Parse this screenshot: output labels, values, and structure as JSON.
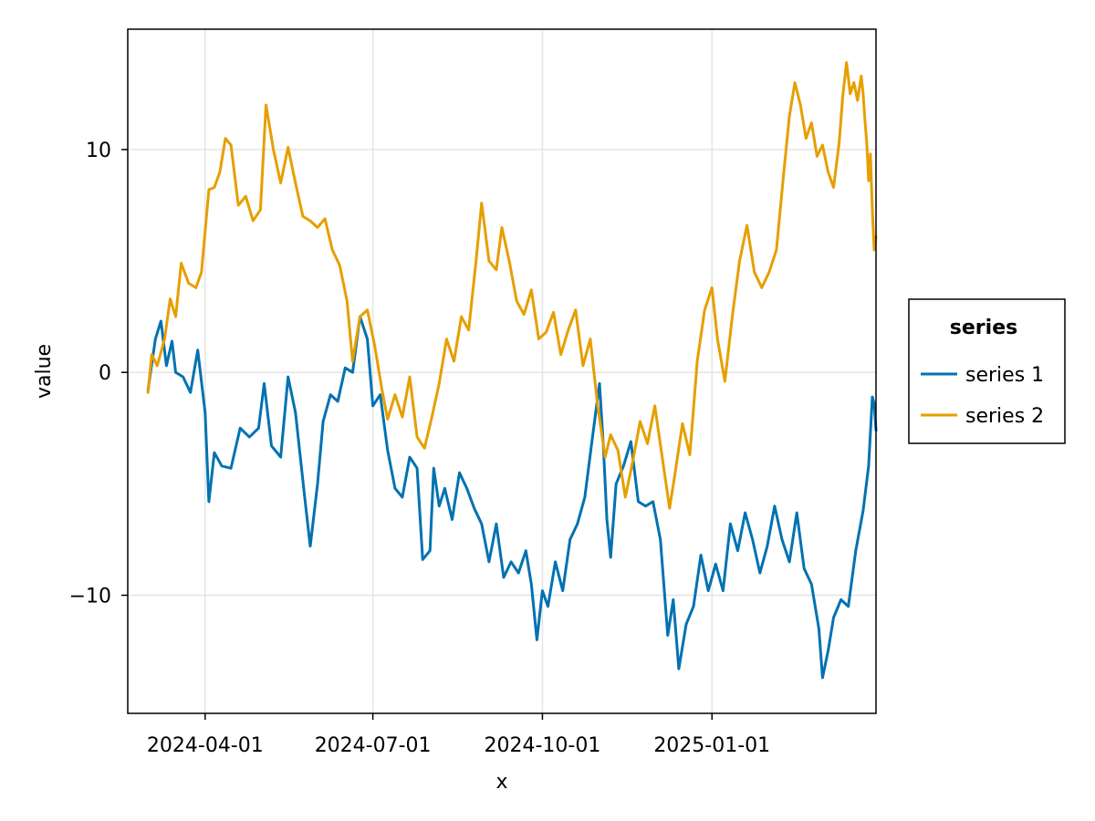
{
  "chart_data": {
    "type": "line",
    "xlabel": "x",
    "ylabel": "value",
    "x_type": "date",
    "x_range": [
      "2024-02-19",
      "2025-03-31"
    ],
    "x_ticks": [
      "2024-04-01",
      "2024-07-01",
      "2024-10-01",
      "2025-01-01"
    ],
    "y_range": [
      -15.3,
      15.4
    ],
    "y_ticks": [
      -10,
      0,
      10
    ],
    "y_tick_labels": [
      "−10",
      "0",
      "10"
    ],
    "grid": true,
    "legend": {
      "title": "series",
      "placement": "right"
    },
    "series": [
      {
        "name": "series 1",
        "color": "#0072b2",
        "points": [
          [
            "2024-03-01",
            -0.8
          ],
          [
            "2024-03-05",
            1.5
          ],
          [
            "2024-03-08",
            2.3
          ],
          [
            "2024-03-11",
            0.3
          ],
          [
            "2024-03-14",
            1.4
          ],
          [
            "2024-03-16",
            0.0
          ],
          [
            "2024-03-20",
            -0.2
          ],
          [
            "2024-03-24",
            -0.9
          ],
          [
            "2024-03-28",
            1.0
          ],
          [
            "2024-04-01",
            -1.8
          ],
          [
            "2024-04-03",
            -5.8
          ],
          [
            "2024-04-06",
            -3.6
          ],
          [
            "2024-04-10",
            -4.2
          ],
          [
            "2024-04-15",
            -4.3
          ],
          [
            "2024-04-20",
            -2.5
          ],
          [
            "2024-04-25",
            -2.9
          ],
          [
            "2024-04-30",
            -2.5
          ],
          [
            "2024-05-03",
            -0.5
          ],
          [
            "2024-05-07",
            -3.3
          ],
          [
            "2024-05-12",
            -3.8
          ],
          [
            "2024-05-16",
            -0.2
          ],
          [
            "2024-05-20",
            -1.8
          ],
          [
            "2024-05-25",
            -5.6
          ],
          [
            "2024-05-28",
            -7.8
          ],
          [
            "2024-06-01",
            -5.0
          ],
          [
            "2024-06-04",
            -2.2
          ],
          [
            "2024-06-08",
            -1.0
          ],
          [
            "2024-06-12",
            -1.3
          ],
          [
            "2024-06-16",
            0.2
          ],
          [
            "2024-06-20",
            0.0
          ],
          [
            "2024-06-24",
            2.5
          ],
          [
            "2024-06-28",
            1.5
          ],
          [
            "2024-07-01",
            -1.5
          ],
          [
            "2024-07-05",
            -1.0
          ],
          [
            "2024-07-09",
            -3.5
          ],
          [
            "2024-07-13",
            -5.2
          ],
          [
            "2024-07-17",
            -5.6
          ],
          [
            "2024-07-21",
            -3.8
          ],
          [
            "2024-07-25",
            -4.3
          ],
          [
            "2024-07-28",
            -8.4
          ],
          [
            "2024-08-01",
            -8.0
          ],
          [
            "2024-08-03",
            -4.3
          ],
          [
            "2024-08-06",
            -6.0
          ],
          [
            "2024-08-09",
            -5.2
          ],
          [
            "2024-08-13",
            -6.6
          ],
          [
            "2024-08-17",
            -4.5
          ],
          [
            "2024-08-21",
            -5.2
          ],
          [
            "2024-08-25",
            -6.1
          ],
          [
            "2024-08-29",
            -6.8
          ],
          [
            "2024-09-02",
            -8.5
          ],
          [
            "2024-09-06",
            -6.8
          ],
          [
            "2024-09-10",
            -9.2
          ],
          [
            "2024-09-14",
            -8.5
          ],
          [
            "2024-09-18",
            -9.0
          ],
          [
            "2024-09-22",
            -8.0
          ],
          [
            "2024-09-25",
            -9.5
          ],
          [
            "2024-09-28",
            -12.0
          ],
          [
            "2024-10-01",
            -9.8
          ],
          [
            "2024-10-04",
            -10.5
          ],
          [
            "2024-10-08",
            -8.5
          ],
          [
            "2024-10-12",
            -9.8
          ],
          [
            "2024-10-16",
            -7.5
          ],
          [
            "2024-10-20",
            -6.8
          ],
          [
            "2024-10-24",
            -5.6
          ],
          [
            "2024-10-28",
            -3.0
          ],
          [
            "2024-11-01",
            -0.5
          ],
          [
            "2024-11-03",
            -3.2
          ],
          [
            "2024-11-05",
            -6.6
          ],
          [
            "2024-11-07",
            -8.3
          ],
          [
            "2024-11-10",
            -5.0
          ],
          [
            "2024-11-14",
            -4.2
          ],
          [
            "2024-11-18",
            -3.1
          ],
          [
            "2024-11-22",
            -5.8
          ],
          [
            "2024-11-26",
            -6.0
          ],
          [
            "2024-11-30",
            -5.8
          ],
          [
            "2024-12-04",
            -7.5
          ],
          [
            "2024-12-08",
            -11.8
          ],
          [
            "2024-12-11",
            -10.2
          ],
          [
            "2024-12-14",
            -13.3
          ],
          [
            "2024-12-18",
            -11.3
          ],
          [
            "2024-12-22",
            -10.5
          ],
          [
            "2024-12-26",
            -8.2
          ],
          [
            "2024-12-30",
            -9.8
          ],
          [
            "2025-01-03",
            -8.6
          ],
          [
            "2025-01-07",
            -9.8
          ],
          [
            "2025-01-11",
            -6.8
          ],
          [
            "2025-01-15",
            -8.0
          ],
          [
            "2025-01-19",
            -6.3
          ],
          [
            "2025-01-23",
            -7.5
          ],
          [
            "2025-01-27",
            -9.0
          ],
          [
            "2025-01-31",
            -7.8
          ],
          [
            "2025-02-04",
            -6.0
          ],
          [
            "2025-02-08",
            -7.5
          ],
          [
            "2025-02-12",
            -8.5
          ],
          [
            "2025-02-16",
            -6.3
          ],
          [
            "2025-02-20",
            -8.8
          ],
          [
            "2025-02-24",
            -9.5
          ],
          [
            "2025-02-28",
            -11.5
          ],
          [
            "2025-03-02",
            -13.7
          ],
          [
            "2025-03-05",
            -12.5
          ],
          [
            "2025-03-08",
            -11.0
          ],
          [
            "2025-03-12",
            -10.2
          ],
          [
            "2025-03-16",
            -10.5
          ],
          [
            "2025-03-20",
            -8.0
          ],
          [
            "2025-03-24",
            -6.2
          ],
          [
            "2025-03-27",
            -4.2
          ],
          [
            "2025-03-29",
            -1.1
          ],
          [
            "2025-03-30",
            -1.4
          ],
          [
            "2025-03-31",
            -2.6
          ]
        ]
      },
      {
        "name": "series 2",
        "color": "#e69f00",
        "points": [
          [
            "2024-03-01",
            -0.9
          ],
          [
            "2024-03-03",
            0.8
          ],
          [
            "2024-03-06",
            0.3
          ],
          [
            "2024-03-10",
            1.5
          ],
          [
            "2024-03-13",
            3.3
          ],
          [
            "2024-03-16",
            2.5
          ],
          [
            "2024-03-19",
            4.9
          ],
          [
            "2024-03-23",
            4.0
          ],
          [
            "2024-03-27",
            3.8
          ],
          [
            "2024-03-30",
            4.5
          ],
          [
            "2024-04-03",
            8.2
          ],
          [
            "2024-04-06",
            8.3
          ],
          [
            "2024-04-09",
            9.0
          ],
          [
            "2024-04-12",
            10.5
          ],
          [
            "2024-04-15",
            10.2
          ],
          [
            "2024-04-19",
            7.5
          ],
          [
            "2024-04-23",
            7.9
          ],
          [
            "2024-04-27",
            6.8
          ],
          [
            "2024-05-01",
            7.3
          ],
          [
            "2024-05-04",
            12.0
          ],
          [
            "2024-05-08",
            10.0
          ],
          [
            "2024-05-12",
            8.5
          ],
          [
            "2024-05-16",
            10.1
          ],
          [
            "2024-05-20",
            8.5
          ],
          [
            "2024-05-24",
            7.0
          ],
          [
            "2024-05-28",
            6.8
          ],
          [
            "2024-06-01",
            6.5
          ],
          [
            "2024-06-05",
            6.9
          ],
          [
            "2024-06-09",
            5.5
          ],
          [
            "2024-06-13",
            4.8
          ],
          [
            "2024-06-17",
            3.2
          ],
          [
            "2024-06-20",
            0.5
          ],
          [
            "2024-06-24",
            2.5
          ],
          [
            "2024-06-28",
            2.8
          ],
          [
            "2024-07-02",
            1.2
          ],
          [
            "2024-07-06",
            -0.8
          ],
          [
            "2024-07-09",
            -2.1
          ],
          [
            "2024-07-13",
            -1.0
          ],
          [
            "2024-07-17",
            -2.0
          ],
          [
            "2024-07-21",
            -0.2
          ],
          [
            "2024-07-25",
            -2.9
          ],
          [
            "2024-07-29",
            -3.4
          ],
          [
            "2024-08-02",
            -2.0
          ],
          [
            "2024-08-06",
            -0.5
          ],
          [
            "2024-08-10",
            1.5
          ],
          [
            "2024-08-14",
            0.5
          ],
          [
            "2024-08-18",
            2.5
          ],
          [
            "2024-08-22",
            1.9
          ],
          [
            "2024-08-26",
            5.0
          ],
          [
            "2024-08-29",
            7.6
          ],
          [
            "2024-09-02",
            5.0
          ],
          [
            "2024-09-06",
            4.6
          ],
          [
            "2024-09-09",
            6.5
          ],
          [
            "2024-09-13",
            5.0
          ],
          [
            "2024-09-17",
            3.2
          ],
          [
            "2024-09-21",
            2.6
          ],
          [
            "2024-09-25",
            3.7
          ],
          [
            "2024-09-29",
            1.5
          ],
          [
            "2024-10-03",
            1.8
          ],
          [
            "2024-10-07",
            2.7
          ],
          [
            "2024-10-11",
            0.8
          ],
          [
            "2024-10-15",
            1.9
          ],
          [
            "2024-10-19",
            2.8
          ],
          [
            "2024-10-23",
            0.3
          ],
          [
            "2024-10-27",
            1.5
          ],
          [
            "2024-10-31",
            -1.5
          ],
          [
            "2024-11-04",
            -3.8
          ],
          [
            "2024-11-07",
            -2.8
          ],
          [
            "2024-11-11",
            -3.5
          ],
          [
            "2024-11-15",
            -5.6
          ],
          [
            "2024-11-19",
            -4.0
          ],
          [
            "2024-11-23",
            -2.2
          ],
          [
            "2024-11-27",
            -3.2
          ],
          [
            "2024-12-01",
            -1.5
          ],
          [
            "2024-12-05",
            -3.8
          ],
          [
            "2024-12-09",
            -6.1
          ],
          [
            "2024-12-12",
            -4.5
          ],
          [
            "2024-12-16",
            -2.3
          ],
          [
            "2024-12-20",
            -3.7
          ],
          [
            "2024-12-24",
            0.5
          ],
          [
            "2024-12-28",
            2.8
          ],
          [
            "2025-01-01",
            3.8
          ],
          [
            "2025-01-04",
            1.5
          ],
          [
            "2025-01-08",
            -0.4
          ],
          [
            "2025-01-12",
            2.5
          ],
          [
            "2025-01-16",
            5.0
          ],
          [
            "2025-01-20",
            6.6
          ],
          [
            "2025-01-24",
            4.5
          ],
          [
            "2025-01-28",
            3.8
          ],
          [
            "2025-02-01",
            4.5
          ],
          [
            "2025-02-05",
            5.5
          ],
          [
            "2025-02-09",
            9.0
          ],
          [
            "2025-02-12",
            11.5
          ],
          [
            "2025-02-15",
            13.0
          ],
          [
            "2025-02-18",
            12.0
          ],
          [
            "2025-02-21",
            10.5
          ],
          [
            "2025-02-24",
            11.2
          ],
          [
            "2025-02-27",
            9.7
          ],
          [
            "2025-03-02",
            10.2
          ],
          [
            "2025-03-05",
            9.0
          ],
          [
            "2025-03-08",
            8.3
          ],
          [
            "2025-03-11",
            10.3
          ],
          [
            "2025-03-13",
            12.4
          ],
          [
            "2025-03-15",
            13.9
          ],
          [
            "2025-03-17",
            12.5
          ],
          [
            "2025-03-19",
            13.0
          ],
          [
            "2025-03-21",
            12.2
          ],
          [
            "2025-03-23",
            13.3
          ],
          [
            "2025-03-24",
            12.5
          ],
          [
            "2025-03-25",
            11.3
          ],
          [
            "2025-03-26",
            10.3
          ],
          [
            "2025-03-27",
            8.6
          ],
          [
            "2025-03-28",
            9.8
          ],
          [
            "2025-03-29",
            7.3
          ],
          [
            "2025-03-30",
            5.5
          ],
          [
            "2025-03-31",
            6.1
          ]
        ]
      }
    ]
  }
}
